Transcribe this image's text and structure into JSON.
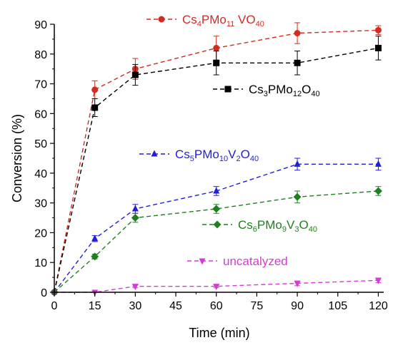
{
  "chart_data": {
    "type": "line",
    "xlabel": "Time (min)",
    "ylabel": "Conversion (%)",
    "xlim": [
      0,
      122
    ],
    "ylim": [
      0,
      90
    ],
    "xticks": [
      0,
      15,
      30,
      45,
      60,
      75,
      90,
      105,
      120
    ],
    "yticks": [
      0,
      10,
      20,
      30,
      40,
      50,
      60,
      70,
      80,
      90
    ],
    "grid": false,
    "series": [
      {
        "name_parts": [
          [
            "Cs",
            ""
          ],
          [
            "4",
            "sub"
          ],
          [
            "PMo",
            ""
          ],
          [
            "11",
            "sub"
          ],
          [
            " VO",
            ""
          ],
          [
            "40",
            "sub"
          ]
        ],
        "color": "#d42b1e",
        "marker": "circle",
        "x": [
          0,
          15,
          30,
          60,
          90,
          120
        ],
        "y": [
          0,
          68,
          75,
          82,
          87,
          88
        ],
        "err": [
          0,
          3,
          3.5,
          4,
          3.5,
          1.5
        ]
      },
      {
        "name_parts": [
          [
            "Cs",
            ""
          ],
          [
            "3",
            "sub"
          ],
          [
            "PMo",
            ""
          ],
          [
            "12",
            "sub"
          ],
          [
            "O",
            ""
          ],
          [
            "40",
            "sub"
          ]
        ],
        "color": "#000000",
        "marker": "square",
        "x": [
          0,
          15,
          30,
          60,
          90,
          120
        ],
        "y": [
          0,
          62,
          73,
          77,
          77,
          82
        ],
        "err": [
          0,
          3,
          3.5,
          4,
          4,
          4
        ]
      },
      {
        "name_parts": [
          [
            "Cs",
            ""
          ],
          [
            "5",
            "sub"
          ],
          [
            "PMo",
            ""
          ],
          [
            "10",
            "sub"
          ],
          [
            "V",
            ""
          ],
          [
            "2",
            "sub"
          ],
          [
            "O",
            ""
          ],
          [
            "40",
            "sub"
          ]
        ],
        "color": "#1f1fd6",
        "marker": "triangle-up",
        "x": [
          0,
          15,
          30,
          60,
          90,
          120
        ],
        "y": [
          0,
          18,
          28,
          34,
          43,
          43
        ],
        "err": [
          0,
          1,
          1.5,
          1.5,
          2,
          2
        ]
      },
      {
        "name_parts": [
          [
            "Cs",
            ""
          ],
          [
            "6",
            "sub"
          ],
          [
            "PMo",
            ""
          ],
          [
            "9",
            "sub"
          ],
          [
            "V",
            ""
          ],
          [
            "3",
            "sub"
          ],
          [
            "O",
            ""
          ],
          [
            "40",
            "sub"
          ]
        ],
        "color": "#1e7f1e",
        "marker": "diamond",
        "x": [
          0,
          15,
          30,
          60,
          90,
          120
        ],
        "y": [
          0,
          12,
          25,
          28,
          32,
          34
        ],
        "err": [
          0,
          0.8,
          1.5,
          1.5,
          2,
          1.5
        ]
      },
      {
        "name_parts": [
          [
            "uncatalyzed",
            ""
          ]
        ],
        "color": "#d63ad6",
        "marker": "triangle-down",
        "x": [
          0,
          15,
          30,
          60,
          90,
          120
        ],
        "y": [
          0,
          0,
          2,
          2,
          3,
          4
        ],
        "err": [
          0,
          0,
          0.5,
          0.5,
          0.8,
          0.8
        ]
      }
    ]
  }
}
